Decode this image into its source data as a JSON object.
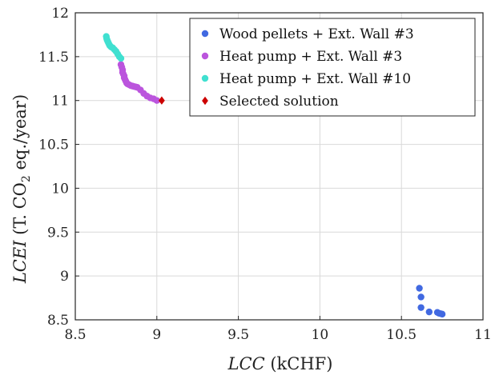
{
  "chart_data": {
    "type": "scatter",
    "xlabel": {
      "italic": "LCC",
      "rest": " (kCHF)"
    },
    "ylabel": {
      "italic": "LCEI",
      "pre": " (T. CO",
      "sub": "2",
      "post": " eq./year)"
    },
    "xlim": [
      8.5,
      11
    ],
    "ylim": [
      8.5,
      12
    ],
    "xticks": [
      8.5,
      9,
      9.5,
      10,
      10.5,
      11
    ],
    "yticks": [
      8.5,
      9,
      9.5,
      10,
      10.5,
      11,
      11.5,
      12
    ],
    "xtick_labels": [
      "8.5",
      "9",
      "9.5",
      "10",
      "10.5",
      "11"
    ],
    "ytick_labels": [
      "8.5",
      "9",
      "9.5",
      "10",
      "10.5",
      "11",
      "11.5",
      "12"
    ],
    "grid": true,
    "legend_position": "top-right",
    "series": [
      {
        "name": "Wood pellets + Ext. Wall #3",
        "color": "#4169e1",
        "marker": "circle",
        "x": [
          10.61,
          10.62,
          10.62,
          10.67,
          10.72,
          10.73,
          10.74,
          10.75
        ],
        "y": [
          8.86,
          8.76,
          8.64,
          8.59,
          8.585,
          8.575,
          8.57,
          8.565
        ]
      },
      {
        "name": "Heat pump + Ext. Wall #3",
        "color": "#bb55dd",
        "marker": "circle",
        "x": [
          8.78,
          8.785,
          8.79,
          8.79,
          8.795,
          8.8,
          8.8,
          8.805,
          8.81,
          8.815,
          8.82,
          8.83,
          8.84,
          8.85,
          8.86,
          8.87,
          8.88,
          8.9,
          8.92,
          8.94,
          8.96,
          8.98,
          9.0
        ],
        "y": [
          11.41,
          11.38,
          11.35,
          11.32,
          11.3,
          11.28,
          11.26,
          11.24,
          11.22,
          11.2,
          11.19,
          11.18,
          11.17,
          11.165,
          11.16,
          11.155,
          11.15,
          11.12,
          11.08,
          11.05,
          11.03,
          11.02,
          11.0
        ]
      },
      {
        "name": "Heat pump + Ext. Wall #10",
        "color": "#40e0d0",
        "marker": "circle",
        "x": [
          8.69,
          8.692,
          8.695,
          8.7,
          8.705,
          8.71,
          8.715,
          8.72,
          8.73,
          8.74,
          8.75,
          8.76,
          8.77,
          8.78
        ],
        "y": [
          11.73,
          11.71,
          11.69,
          11.67,
          11.65,
          11.63,
          11.62,
          11.61,
          11.6,
          11.58,
          11.56,
          11.53,
          11.5,
          11.48
        ]
      },
      {
        "name": "Selected solution",
        "color": "#cc0000",
        "marker": "diamond",
        "x": [
          9.03
        ],
        "y": [
          11.0
        ]
      }
    ]
  }
}
